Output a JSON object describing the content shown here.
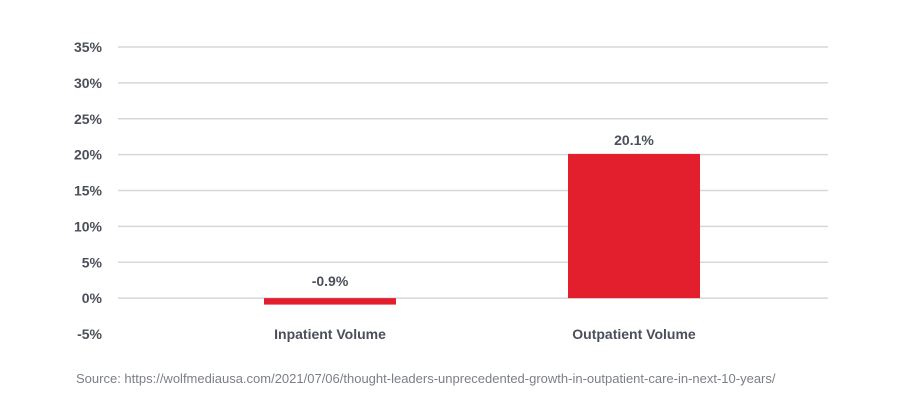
{
  "chart_data": {
    "type": "bar",
    "categories": [
      "Inpatient Volume",
      "Outpatient Volume"
    ],
    "values": [
      -0.9,
      20.1
    ],
    "data_labels": [
      "-0.9%",
      "20.1%"
    ],
    "yticks": [
      35,
      30,
      25,
      20,
      15,
      10,
      5,
      0,
      -5
    ],
    "ytick_labels": [
      "35%",
      "30%",
      "25%",
      "20%",
      "15%",
      "10%",
      "5%",
      "0%",
      "-5%"
    ],
    "ylim": [
      -5,
      35
    ],
    "grid": true,
    "title": "",
    "xlabel": "",
    "ylabel": "",
    "bar_color": "#e31e2d",
    "grid_color": "#d4d8dc",
    "text_color": "#4a4f5a"
  },
  "source_text": "Source: https://wolfmediausa.com/2021/07/06/thought-leaders-unprecedented-growth-in-outpatient-care-in-next-10-years/"
}
